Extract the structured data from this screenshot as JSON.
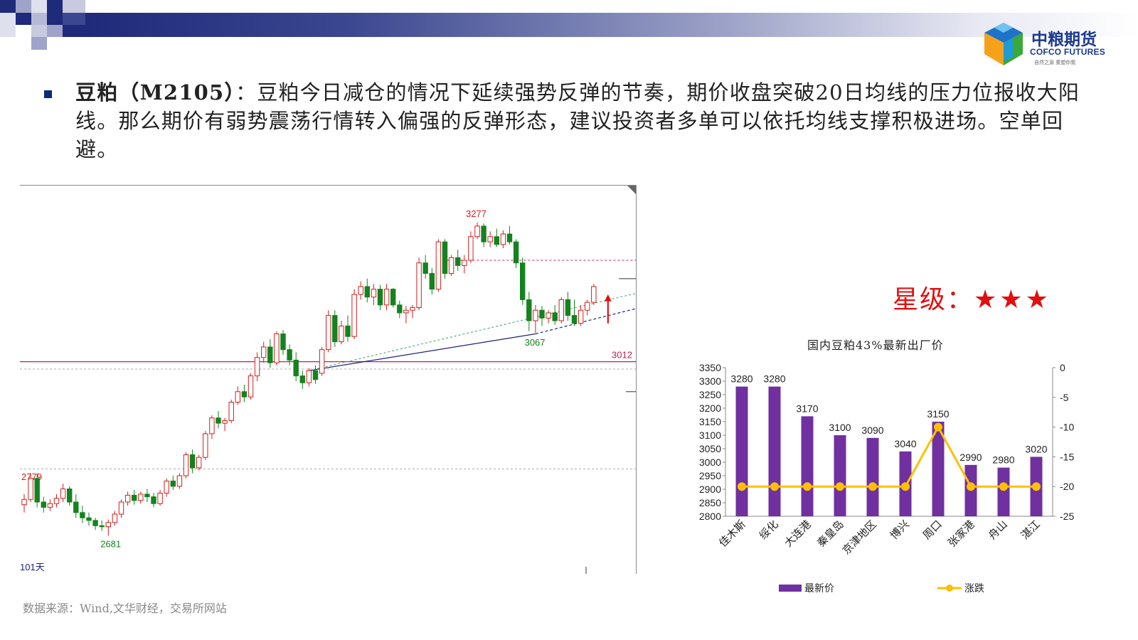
{
  "header": {
    "logo_cn": "中粮期货",
    "logo_en": "COFCO FUTURES",
    "logo_tagline": "自然之源 重塑你我"
  },
  "commentary": {
    "keyword": "豆粕（M2105）",
    "text": "：豆粕今日减仓的情况下延续强势反弹的节奏，期价收盘突破20日均线的压力位报收大阳线。那么期价有弱势震荡行情转入偏强的反弹形态，建议投资者多单可以依托均线支撑积极进场。空单回避。"
  },
  "rating": {
    "label": "星级：",
    "stars": "★★★"
  },
  "source": "数据来源：Wind,文华财经，交易所网站",
  "colors": {
    "up": "#d21e1e",
    "down": "#14821e",
    "bar": "#7030a0",
    "line": "#ffc000",
    "hline": "#c0205a"
  },
  "chart_data": [
    {
      "type": "candlestick",
      "period_label": "101天",
      "annotations": [
        {
          "text": "3277",
          "value": 3277
        },
        {
          "text": "3067",
          "value": 3067
        },
        {
          "text": "3012",
          "value": 3012
        },
        {
          "text": "2779",
          "value": 2779
        },
        {
          "text": "2681",
          "value": 2681
        }
      ],
      "horizontal_line": 3012,
      "ylim": [
        2630,
        3320
      ],
      "candles": [
        [
          2740,
          2760,
          2725,
          2750
        ],
        [
          2750,
          2800,
          2745,
          2790
        ],
        [
          2790,
          2800,
          2735,
          2745
        ],
        [
          2745,
          2755,
          2725,
          2735
        ],
        [
          2735,
          2750,
          2728,
          2742
        ],
        [
          2742,
          2760,
          2735,
          2752
        ],
        [
          2752,
          2780,
          2745,
          2770
        ],
        [
          2770,
          2775,
          2738,
          2745
        ],
        [
          2745,
          2760,
          2715,
          2725
        ],
        [
          2725,
          2738,
          2705,
          2715
        ],
        [
          2715,
          2725,
          2700,
          2710
        ],
        [
          2710,
          2715,
          2692,
          2700
        ],
        [
          2700,
          2710,
          2690,
          2698
        ],
        [
          2698,
          2712,
          2681,
          2706
        ],
        [
          2706,
          2728,
          2700,
          2722
        ],
        [
          2722,
          2750,
          2715,
          2745
        ],
        [
          2745,
          2765,
          2738,
          2758
        ],
        [
          2758,
          2768,
          2740,
          2748
        ],
        [
          2748,
          2765,
          2742,
          2760
        ],
        [
          2760,
          2770,
          2745,
          2755
        ],
        [
          2755,
          2762,
          2735,
          2742
        ],
        [
          2742,
          2768,
          2738,
          2762
        ],
        [
          2762,
          2790,
          2755,
          2785
        ],
        [
          2785,
          2795,
          2768,
          2775
        ],
        [
          2775,
          2800,
          2770,
          2795
        ],
        [
          2795,
          2840,
          2790,
          2835
        ],
        [
          2835,
          2845,
          2800,
          2810
        ],
        [
          2810,
          2835,
          2805,
          2830
        ],
        [
          2830,
          2880,
          2825,
          2875
        ],
        [
          2875,
          2910,
          2865,
          2905
        ],
        [
          2905,
          2918,
          2885,
          2895
        ],
        [
          2895,
          2905,
          2880,
          2900
        ],
        [
          2900,
          2940,
          2895,
          2935
        ],
        [
          2935,
          2965,
          2930,
          2955
        ],
        [
          2955,
          2968,
          2935,
          2945
        ],
        [
          2945,
          2990,
          2940,
          2985
        ],
        [
          2985,
          3030,
          2975,
          3020
        ],
        [
          3020,
          3050,
          3010,
          3040
        ],
        [
          3040,
          3055,
          3000,
          3010
        ],
        [
          3010,
          3070,
          3005,
          3065
        ],
        [
          3065,
          3072,
          3025,
          3035
        ],
        [
          3035,
          3045,
          3005,
          3015
        ],
        [
          3015,
          3030,
          2975,
          2985
        ],
        [
          2985,
          2995,
          2960,
          2972
        ],
        [
          2972,
          3000,
          2965,
          2995
        ],
        [
          2995,
          3005,
          2970,
          2978
        ],
        [
          2990,
          3040,
          2985,
          3035
        ],
        [
          3035,
          3110,
          3030,
          3100
        ],
        [
          3100,
          3110,
          3040,
          3050
        ],
        [
          3050,
          3090,
          3045,
          3080
        ],
        [
          3080,
          3100,
          3050,
          3060
        ],
        [
          3060,
          3150,
          3055,
          3140
        ],
        [
          3140,
          3165,
          3130,
          3155
        ],
        [
          3155,
          3170,
          3125,
          3135
        ],
        [
          3135,
          3160,
          3120,
          3150
        ],
        [
          3150,
          3158,
          3110,
          3120
        ],
        [
          3120,
          3160,
          3110,
          3150
        ],
        [
          3150,
          3152,
          3115,
          3120
        ],
        [
          3120,
          3128,
          3095,
          3105
        ],
        [
          3105,
          3118,
          3085,
          3110
        ],
        [
          3110,
          3120,
          3095,
          3115
        ],
        [
          3115,
          3210,
          3110,
          3200
        ],
        [
          3200,
          3215,
          3170,
          3180
        ],
        [
          3180,
          3190,
          3140,
          3150
        ],
        [
          3150,
          3245,
          3145,
          3240
        ],
        [
          3240,
          3245,
          3170,
          3180
        ],
        [
          3180,
          3215,
          3175,
          3210
        ],
        [
          3210,
          3225,
          3185,
          3195
        ],
        [
          3195,
          3215,
          3180,
          3205
        ],
        [
          3205,
          3260,
          3200,
          3250
        ],
        [
          3250,
          3277,
          3245,
          3270
        ],
        [
          3270,
          3275,
          3230,
          3240
        ],
        [
          3240,
          3260,
          3230,
          3250
        ],
        [
          3250,
          3265,
          3230,
          3235
        ],
        [
          3235,
          3262,
          3228,
          3255
        ],
        [
          3255,
          3270,
          3235,
          3240
        ],
        [
          3240,
          3245,
          3190,
          3200
        ],
        [
          3200,
          3210,
          3120,
          3130
        ],
        [
          3130,
          3145,
          3070,
          3090
        ],
        [
          3090,
          3120,
          3067,
          3110
        ],
        [
          3110,
          3118,
          3080,
          3095
        ],
        [
          3095,
          3110,
          3085,
          3105
        ],
        [
          3105,
          3120,
          3082,
          3090
        ],
        [
          3090,
          3135,
          3085,
          3130
        ],
        [
          3130,
          3145,
          3090,
          3100
        ],
        [
          3100,
          3130,
          3080,
          3085
        ],
        [
          3085,
          3120,
          3080,
          3110
        ],
        [
          3110,
          3130,
          3100,
          3125
        ],
        [
          3125,
          3160,
          3120,
          3155
        ]
      ]
    },
    {
      "type": "bar+line",
      "title": "国内豆粕43%最新出厂价",
      "categories": [
        "佳木斯",
        "绥化",
        "大连港",
        "秦皇岛",
        "京津地区",
        "博兴",
        "周口",
        "张家港",
        "舟山",
        "湛江"
      ],
      "series": [
        {
          "name": "最新价",
          "type": "bar",
          "axis": "left",
          "values": [
            3280,
            3280,
            3170,
            3100,
            3090,
            3040,
            3150,
            2990,
            2980,
            3020
          ]
        },
        {
          "name": "涨跌",
          "type": "line",
          "axis": "right",
          "values": [
            -20,
            -20,
            -20,
            -20,
            -20,
            -20,
            -10,
            -20,
            -20,
            -20
          ]
        }
      ],
      "ylim_left": [
        2800,
        3350
      ],
      "yticks_left": [
        2800,
        2850,
        2900,
        2950,
        3000,
        3050,
        3100,
        3150,
        3200,
        3250,
        3300,
        3350
      ],
      "ylim_right": [
        -25,
        0
      ],
      "yticks_right": [
        0,
        -5,
        -10,
        -15,
        -20,
        -25
      ],
      "legend": "bottom"
    }
  ]
}
